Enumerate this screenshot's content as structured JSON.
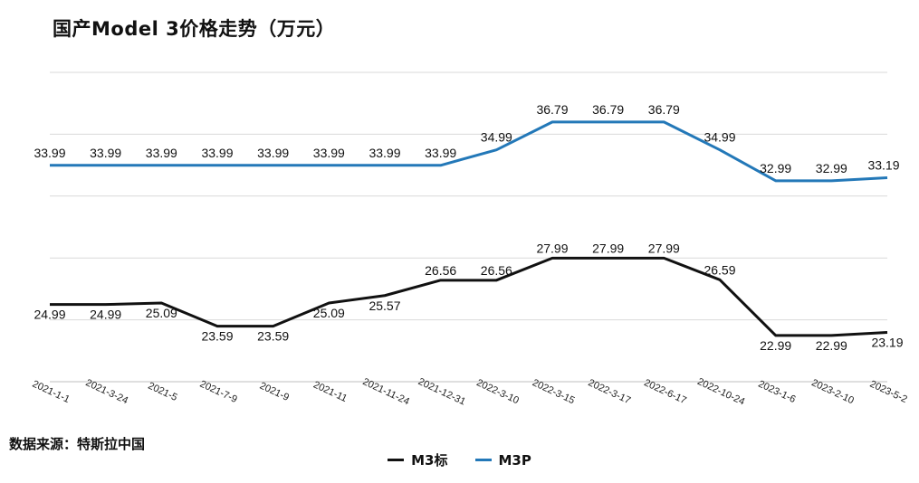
{
  "title": "国产Model 3价格走势（万元）",
  "source": "数据来源：特斯拉中国",
  "colors": {
    "m3": "#111111",
    "m3p": "#2378b8",
    "grid": "#d9d9d9"
  },
  "chart_data": {
    "type": "line",
    "title": "国产Model 3价格走势（万元）",
    "categories": [
      "2021-1-1",
      "2021-3-24",
      "2021-5",
      "2021-7-9",
      "2021-9",
      "2021-11",
      "2021-11-24",
      "2021-12-31",
      "2022-3-10",
      "2022-3-15",
      "2022-3-17",
      "2022-6-17",
      "2022-10-24",
      "2023-1-6",
      "2023-2-10",
      "2023-5-2"
    ],
    "series": [
      {
        "name": "M3标",
        "color": "#111111",
        "values": [
          24.99,
          24.99,
          25.09,
          23.59,
          23.59,
          25.09,
          25.57,
          26.56,
          26.56,
          27.99,
          27.99,
          27.99,
          26.59,
          22.99,
          22.99,
          23.19
        ]
      },
      {
        "name": "M3P",
        "color": "#2378b8",
        "values": [
          33.99,
          33.99,
          33.99,
          33.99,
          33.99,
          33.99,
          33.99,
          33.99,
          34.99,
          36.79,
          36.79,
          36.79,
          34.99,
          32.99,
          32.99,
          33.19
        ]
      }
    ],
    "ylim": [
      20,
      40
    ],
    "grid": true,
    "legend": "bottom-center",
    "xlabel": "",
    "ylabel": ""
  }
}
